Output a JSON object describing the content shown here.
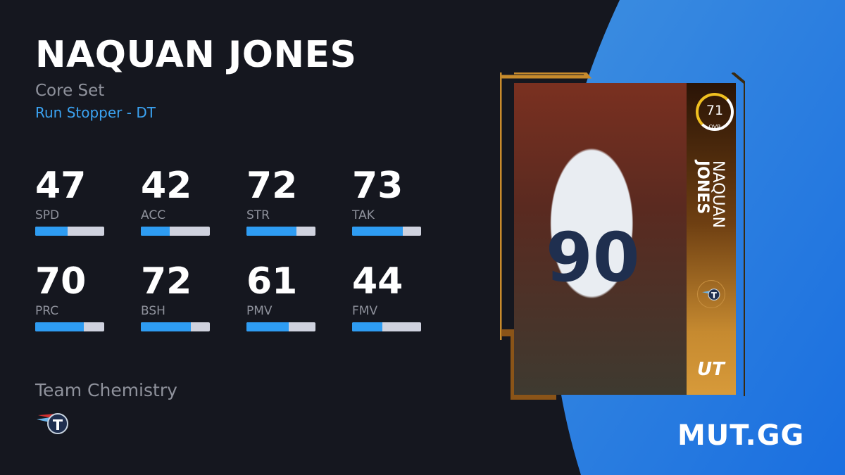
{
  "player": {
    "name": "NAQUAN JONES",
    "first_name": "NAQUAN",
    "last_name": "JONES",
    "set": "Core Set",
    "archetype": "Run Stopper - DT",
    "overall": "71",
    "overall_label": "OVR",
    "jersey_number": "90",
    "program": "UT",
    "team": "Titans"
  },
  "stats": [
    {
      "label": "SPD",
      "value": "47",
      "fill": 47
    },
    {
      "label": "ACC",
      "value": "42",
      "fill": 42
    },
    {
      "label": "STR",
      "value": "72",
      "fill": 72
    },
    {
      "label": "TAK",
      "value": "73",
      "fill": 73
    },
    {
      "label": "PRC",
      "value": "70",
      "fill": 70
    },
    {
      "label": "BSH",
      "value": "72",
      "fill": 72
    },
    {
      "label": "PMV",
      "value": "61",
      "fill": 61
    },
    {
      "label": "FMV",
      "value": "44",
      "fill": 44
    }
  ],
  "chemistry": {
    "title": "Team Chemistry",
    "icons": [
      "titans-logo-icon"
    ]
  },
  "brand": "MUT.GG",
  "colors": {
    "background": "#15171f",
    "accent": "#3ba3f2",
    "bar_fill": "#2e9cf2",
    "bar_track": "#cfd2de",
    "card_gold": "#c68a30",
    "ovr_ring": "#f0c020"
  }
}
